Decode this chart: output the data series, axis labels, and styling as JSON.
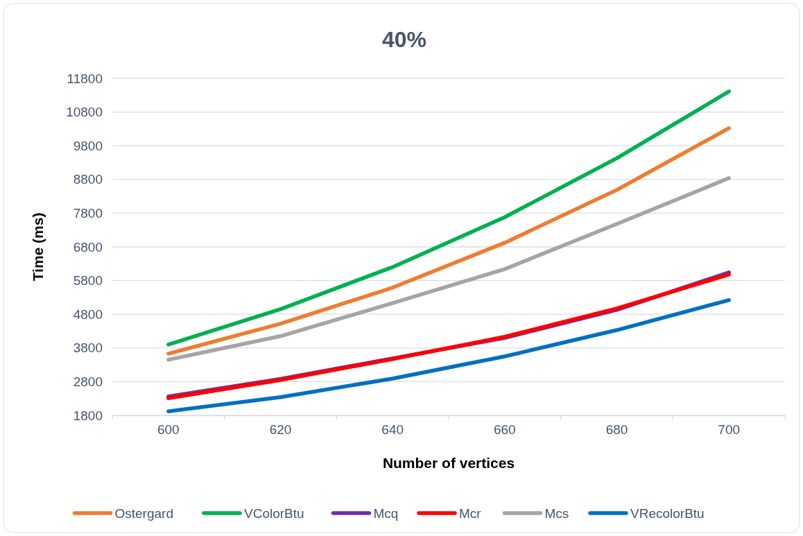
{
  "chart_data": {
    "type": "line",
    "title": "40%",
    "xlabel": "Number of vertices",
    "ylabel": "Time (ms)",
    "categories": [
      "600",
      "620",
      "640",
      "660",
      "680",
      "700"
    ],
    "ylim": [
      1800,
      11800
    ],
    "yticks": [
      1800,
      2800,
      3800,
      4800,
      5800,
      6800,
      7800,
      8800,
      9800,
      10800,
      11800
    ],
    "grid": "y",
    "legend": "bottom",
    "marker": "none",
    "line_style": "solid",
    "series": [
      {
        "name": "Ostergard",
        "color": "#ed7d31",
        "values": [
          3630,
          4520,
          5590,
          6920,
          8490,
          10320
        ]
      },
      {
        "name": "VColorBtu",
        "color": "#00b050",
        "values": [
          3900,
          4950,
          6200,
          7680,
          9430,
          11410
        ]
      },
      {
        "name": "Mcq",
        "color": "#7030a0",
        "values": [
          2360,
          2880,
          3490,
          4100,
          4930,
          6040
        ]
      },
      {
        "name": "Mcr",
        "color": "#ff0000",
        "values": [
          2310,
          2850,
          3470,
          4130,
          4970,
          5980
        ]
      },
      {
        "name": "Mcs",
        "color": "#a5a5a5",
        "values": [
          3450,
          4150,
          5130,
          6140,
          7480,
          8840
        ]
      },
      {
        "name": "VRecolorBtu",
        "color": "#0070c0",
        "values": [
          1920,
          2340,
          2890,
          3550,
          4330,
          5220
        ]
      }
    ]
  }
}
